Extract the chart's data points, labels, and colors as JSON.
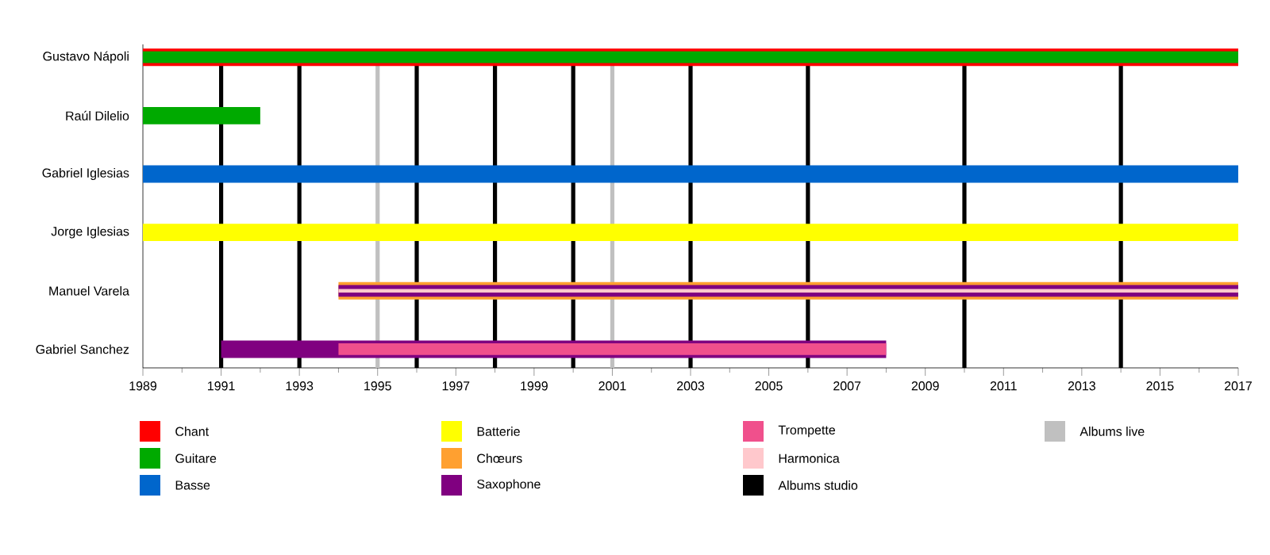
{
  "chart_data": {
    "type": "bar",
    "orientation": "horizontal",
    "categories": [
      "Gustavo Nápoli",
      "Raúl Dilelio",
      "Gabriel Iglesias",
      "Jorge Iglesias",
      "Manuel Varela",
      "Gabriel Sanchez"
    ],
    "series": [
      {
        "name": "Chant",
        "color": "#ff0000",
        "values": [
          28,
          null,
          null,
          null,
          null,
          null
        ],
        "base": [
          1989,
          null,
          null,
          null,
          null,
          null
        ]
      },
      {
        "name": "Guitare",
        "color": "#00aa00",
        "values": [
          28,
          3,
          null,
          null,
          null,
          null
        ],
        "base": [
          1989,
          1989,
          null,
          null,
          null,
          null
        ]
      },
      {
        "name": "Basse",
        "color": "#0066cc",
        "values": [
          null,
          null,
          28,
          null,
          null,
          null
        ],
        "base": [
          null,
          null,
          1989,
          null,
          null,
          null
        ]
      },
      {
        "name": "Batterie",
        "color": "#ffff00",
        "values": [
          null,
          null,
          null,
          28,
          null,
          null
        ],
        "base": [
          null,
          null,
          null,
          1989,
          null,
          null
        ]
      },
      {
        "name": "Chœurs",
        "color": "#ffa030",
        "values": [
          null,
          null,
          null,
          null,
          23,
          null
        ],
        "base": [
          null,
          null,
          null,
          null,
          1994,
          null
        ]
      },
      {
        "name": "Saxophone",
        "color": "#800080",
        "values": [
          null,
          null,
          null,
          null,
          23,
          17
        ],
        "base": [
          null,
          null,
          null,
          null,
          1994,
          1991
        ]
      },
      {
        "name": "Trompette",
        "color": "#f0508c",
        "values": [
          null,
          null,
          null,
          null,
          null,
          14
        ],
        "base": [
          null,
          null,
          null,
          null,
          null,
          1994
        ]
      },
      {
        "name": "Harmonica",
        "color": "#ffc8cc",
        "values": [
          null,
          null,
          null,
          null,
          23,
          null
        ],
        "base": [
          null,
          null,
          null,
          null,
          1994,
          null
        ]
      }
    ],
    "xlim": [
      1989,
      2017
    ],
    "xticks": [
      1989,
      1991,
      1993,
      1995,
      1997,
      1999,
      2001,
      2003,
      2005,
      2007,
      2009,
      2011,
      2013,
      2015,
      2017
    ],
    "ref_lines": [
      {
        "axis": "x",
        "value": 1991,
        "color": "#000000",
        "label": "Albums studio"
      },
      {
        "axis": "x",
        "value": 1993,
        "color": "#000000"
      },
      {
        "axis": "x",
        "value": 1996,
        "color": "#000000"
      },
      {
        "axis": "x",
        "value": 1998,
        "color": "#000000"
      },
      {
        "axis": "x",
        "value": 2000,
        "color": "#000000"
      },
      {
        "axis": "x",
        "value": 2003,
        "color": "#000000"
      },
      {
        "axis": "x",
        "value": 2006,
        "color": "#000000"
      },
      {
        "axis": "x",
        "value": 2010,
        "color": "#000000"
      },
      {
        "axis": "x",
        "value": 2014,
        "color": "#000000"
      },
      {
        "axis": "x",
        "value": 1995,
        "color": "#c0c0c0",
        "label": "Albums live"
      },
      {
        "axis": "x",
        "value": 2001,
        "color": "#c0c0c0"
      }
    ],
    "legend": "bottom"
  }
}
